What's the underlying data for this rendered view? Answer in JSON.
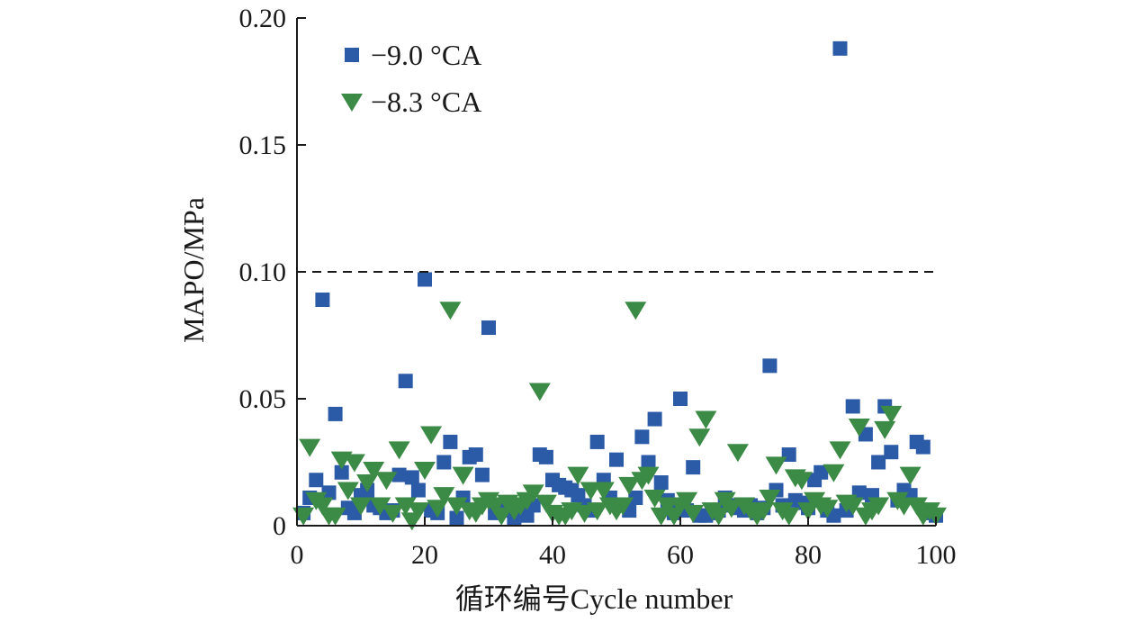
{
  "chart_data": {
    "type": "scatter",
    "xlabel": "循环编号Cycle number",
    "ylabel": "MAPO/MPa",
    "xlim": [
      0,
      100
    ],
    "ylim": [
      0,
      0.2
    ],
    "xticks": [
      "0",
      "20",
      "40",
      "60",
      "80",
      "100"
    ],
    "yticks": [
      "0",
      "0.05",
      "0.10",
      "0.15",
      "0.20"
    ],
    "grid": false,
    "legend_position": "top-left",
    "reference_line": {
      "y": 0.1,
      "style": "dashed"
    },
    "series": [
      {
        "name": "−9.0 °CA",
        "marker": "square",
        "color": "#2b5ba6",
        "x": [
          1,
          2,
          3,
          4,
          5,
          6,
          7,
          8,
          9,
          10,
          11,
          12,
          13,
          14,
          15,
          16,
          17,
          18,
          19,
          20,
          21,
          22,
          23,
          24,
          25,
          26,
          27,
          28,
          29,
          30,
          31,
          32,
          33,
          34,
          35,
          36,
          37,
          38,
          39,
          40,
          41,
          42,
          43,
          44,
          45,
          46,
          47,
          48,
          49,
          50,
          51,
          52,
          53,
          54,
          55,
          56,
          57,
          58,
          59,
          60,
          61,
          62,
          63,
          64,
          65,
          66,
          67,
          68,
          69,
          70,
          71,
          72,
          73,
          74,
          75,
          76,
          77,
          78,
          79,
          80,
          81,
          82,
          83,
          84,
          85,
          86,
          87,
          88,
          89,
          90,
          91,
          92,
          93,
          94,
          95,
          96,
          97,
          98,
          99,
          100
        ],
        "y": [
          0.005,
          0.011,
          0.018,
          0.089,
          0.013,
          0.044,
          0.021,
          0.007,
          0.005,
          0.012,
          0.014,
          0.008,
          0.007,
          0.005,
          0.006,
          0.02,
          0.057,
          0.019,
          0.014,
          0.097,
          0.006,
          0.005,
          0.025,
          0.033,
          0.003,
          0.011,
          0.027,
          0.028,
          0.02,
          0.078,
          0.005,
          0.008,
          0.006,
          0.003,
          0.005,
          0.004,
          0.008,
          0.028,
          0.027,
          0.018,
          0.016,
          0.015,
          0.014,
          0.012,
          0.008,
          0.006,
          0.033,
          0.018,
          0.011,
          0.026,
          0.008,
          0.006,
          0.011,
          0.035,
          0.025,
          0.042,
          0.017,
          0.01,
          0.005,
          0.05,
          0.006,
          0.023,
          0.004,
          0.004,
          0.005,
          0.006,
          0.011,
          0.008,
          0.007,
          0.006,
          0.008,
          0.005,
          0.007,
          0.063,
          0.014,
          0.008,
          0.028,
          0.01,
          0.009,
          0.007,
          0.018,
          0.021,
          0.006,
          0.004,
          0.188,
          0.006,
          0.047,
          0.013,
          0.036,
          0.012,
          0.025,
          0.047,
          0.029,
          0.01,
          0.014,
          0.012,
          0.033,
          0.031,
          0.005,
          0.004
        ]
      },
      {
        "name": "−8.3 °CA",
        "marker": "triangle-down",
        "color": "#3b8a45",
        "x": [
          1,
          2,
          3,
          4,
          5,
          6,
          7,
          8,
          9,
          10,
          11,
          12,
          13,
          14,
          15,
          16,
          17,
          18,
          19,
          20,
          21,
          22,
          23,
          24,
          25,
          26,
          27,
          28,
          29,
          30,
          31,
          32,
          33,
          34,
          35,
          36,
          37,
          38,
          39,
          40,
          41,
          42,
          43,
          44,
          45,
          46,
          47,
          48,
          49,
          50,
          51,
          52,
          53,
          54,
          55,
          56,
          57,
          58,
          59,
          60,
          61,
          62,
          63,
          64,
          65,
          66,
          67,
          68,
          69,
          70,
          71,
          72,
          73,
          74,
          75,
          76,
          77,
          78,
          79,
          80,
          81,
          82,
          83,
          84,
          85,
          86,
          87,
          88,
          89,
          90,
          91,
          92,
          93,
          94,
          95,
          96,
          97,
          98,
          99,
          100
        ],
        "y": [
          0.004,
          0.031,
          0.01,
          0.008,
          0.004,
          0.004,
          0.026,
          0.014,
          0.025,
          0.008,
          0.017,
          0.022,
          0.008,
          0.018,
          0.005,
          0.03,
          0.008,
          0.002,
          0.006,
          0.022,
          0.036,
          0.007,
          0.012,
          0.085,
          0.008,
          0.02,
          0.006,
          0.005,
          0.008,
          0.01,
          0.008,
          0.004,
          0.009,
          0.006,
          0.008,
          0.01,
          0.013,
          0.053,
          0.009,
          0.005,
          0.004,
          0.004,
          0.006,
          0.02,
          0.005,
          0.014,
          0.006,
          0.014,
          0.008,
          0.006,
          0.008,
          0.016,
          0.085,
          0.018,
          0.02,
          0.011,
          0.004,
          0.008,
          0.004,
          0.008,
          0.01,
          0.005,
          0.035,
          0.042,
          0.006,
          0.004,
          0.01,
          0.007,
          0.029,
          0.008,
          0.006,
          0.004,
          0.006,
          0.011,
          0.024,
          0.006,
          0.004,
          0.019,
          0.018,
          0.006,
          0.01,
          0.008,
          0.007,
          0.021,
          0.03,
          0.009,
          0.008,
          0.039,
          0.004,
          0.006,
          0.008,
          0.038,
          0.044,
          0.01,
          0.008,
          0.02,
          0.008,
          0.004,
          0.006,
          0.004
        ]
      }
    ]
  }
}
